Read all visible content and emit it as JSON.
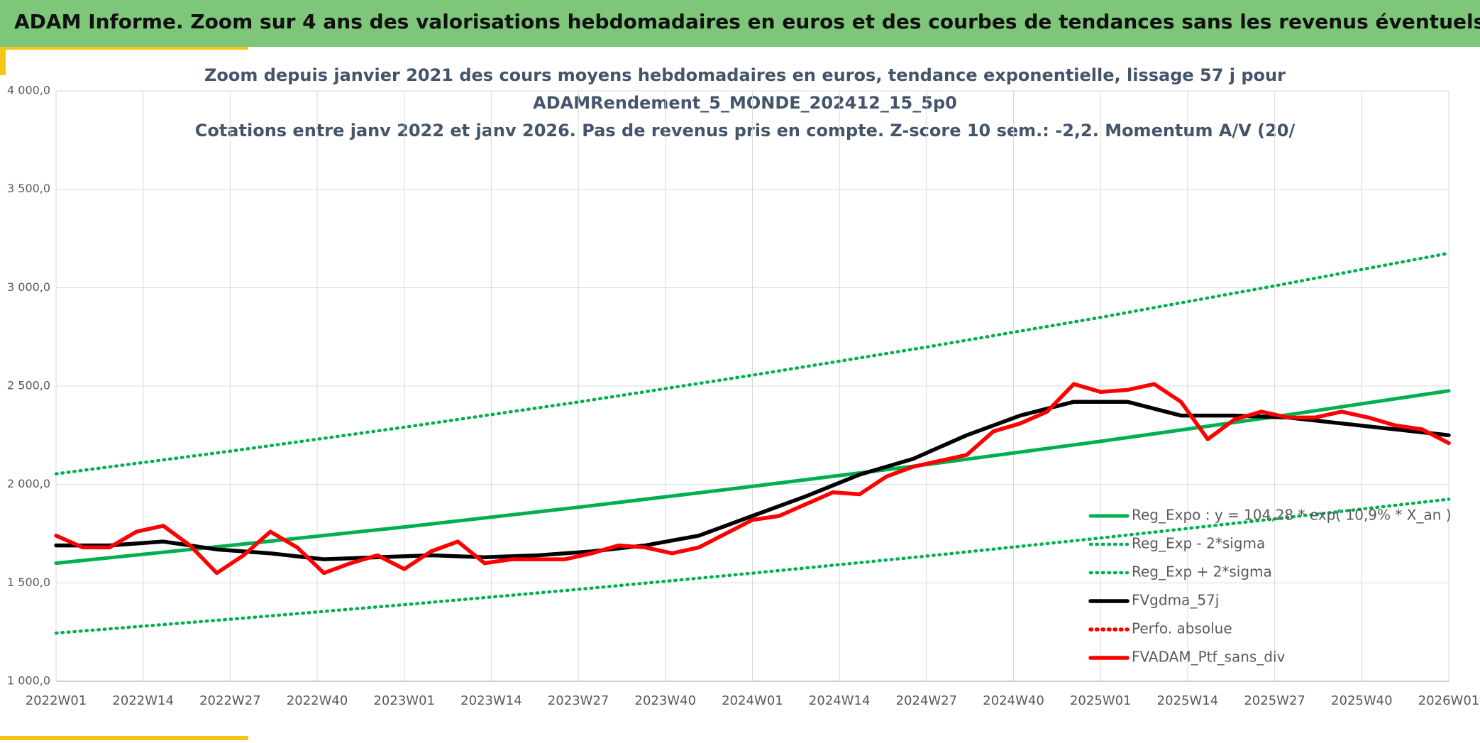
{
  "header": {
    "title": "ADAM Informe. Zoom sur 4 ans des valorisations hebdomadaires en euros et des courbes de tendances sans les revenus éventuels"
  },
  "chart_data": {
    "type": "line",
    "title": [
      "Zoom depuis janvier 2021 des cours moyens hebdomadaires en euros, tendance exponentielle, lissage 57 j pour",
      "ADAMRendement_5_MONDE_202412_15_5p0",
      "Cotations entre janv 2022 et janv 2026. Pas de revenus pris en compte. Z-score 10 sem.: -2,2. Momentum A/V (20/"
    ],
    "xlim": [
      0,
      208
    ],
    "xticks": [
      {
        "value": 0,
        "label": "2022W01"
      },
      {
        "value": 13,
        "label": "2022W14"
      },
      {
        "value": 26,
        "label": "2022W27"
      },
      {
        "value": 39,
        "label": "2022W40"
      },
      {
        "value": 52,
        "label": "2023W01"
      },
      {
        "value": 65,
        "label": "2023W14"
      },
      {
        "value": 78,
        "label": "2023W27"
      },
      {
        "value": 91,
        "label": "2023W40"
      },
      {
        "value": 104,
        "label": "2024W01"
      },
      {
        "value": 117,
        "label": "2024W14"
      },
      {
        "value": 130,
        "label": "2024W27"
      },
      {
        "value": 143,
        "label": "2024W40"
      },
      {
        "value": 156,
        "label": "2025W01"
      },
      {
        "value": 169,
        "label": "2025W14"
      },
      {
        "value": 182,
        "label": "2025W27"
      },
      {
        "value": 195,
        "label": "2025W40"
      },
      {
        "value": 208,
        "label": "2026W01"
      }
    ],
    "ylim": [
      1000,
      4000
    ],
    "yticks": [
      {
        "value": 1000,
        "label": "1 000,0"
      },
      {
        "value": 1500,
        "label": "1 500,0"
      },
      {
        "value": 2000,
        "label": "2 000,0"
      },
      {
        "value": 2500,
        "label": "2 500,0"
      },
      {
        "value": 3000,
        "label": "3 000,0"
      },
      {
        "value": 3500,
        "label": "3 500,0"
      },
      {
        "value": 4000,
        "label": "4 000,0"
      }
    ],
    "grid": true,
    "legend": "lower-right",
    "series": [
      {
        "name": "Reg_Expo : y = 104,28 * exp( 10,9% * X_an )",
        "color": "#00b050",
        "dash": "solid",
        "x": [
          0,
          26,
          52,
          78,
          104,
          130,
          156,
          182,
          208
        ],
        "values": [
          1600,
          1690,
          1784,
          1884,
          1990,
          2101,
          2219,
          2344,
          2476
        ]
      },
      {
        "name": "Reg_Exp - 2*sigma",
        "color": "#00b050",
        "dash": "dotted",
        "x": [
          0,
          26,
          52,
          78,
          104,
          130,
          156,
          182,
          208
        ],
        "values": [
          1245,
          1315,
          1389,
          1467,
          1549,
          1636,
          1728,
          1825,
          1925
        ]
      },
      {
        "name": "Reg_Exp + 2*sigma",
        "color": "#00b050",
        "dash": "dotted",
        "x": [
          0,
          26,
          52,
          78,
          104,
          130,
          156,
          182,
          208
        ],
        "values": [
          2054,
          2169,
          2291,
          2419,
          2555,
          2698,
          2849,
          3009,
          3175
        ]
      },
      {
        "name": "FVgdma_57j",
        "color": "#000000",
        "dash": "solid",
        "x": [
          0,
          8,
          16,
          24,
          32,
          40,
          48,
          56,
          64,
          72,
          80,
          88,
          96,
          104,
          112,
          120,
          128,
          136,
          144,
          152,
          160,
          168,
          176,
          184,
          192,
          200,
          208
        ],
        "values": [
          1690,
          1690,
          1710,
          1670,
          1650,
          1620,
          1630,
          1640,
          1630,
          1640,
          1660,
          1690,
          1740,
          1840,
          1940,
          2050,
          2130,
          2250,
          2350,
          2420,
          2420,
          2350,
          2350,
          2340,
          2310,
          2280,
          2250
        ]
      },
      {
        "name": "Perfo. absolue",
        "color": "#ff0000",
        "dash": "dotted",
        "x": [],
        "values": []
      },
      {
        "name": "FVADAM_Ptf_sans_div",
        "color": "#ff0000",
        "dash": "solid",
        "x": [
          0,
          4,
          8,
          12,
          16,
          20,
          24,
          28,
          32,
          36,
          40,
          44,
          48,
          52,
          56,
          60,
          64,
          68,
          72,
          76,
          80,
          84,
          88,
          92,
          96,
          100,
          104,
          108,
          112,
          116,
          120,
          124,
          128,
          132,
          136,
          140,
          144,
          148,
          152,
          156,
          160,
          164,
          168,
          172,
          176,
          180,
          184,
          188,
          192,
          196,
          200,
          204,
          208
        ],
        "values": [
          1740,
          1680,
          1680,
          1760,
          1790,
          1690,
          1550,
          1640,
          1760,
          1680,
          1550,
          1600,
          1640,
          1570,
          1660,
          1710,
          1600,
          1620,
          1620,
          1620,
          1650,
          1690,
          1680,
          1650,
          1680,
          1750,
          1820,
          1840,
          1900,
          1960,
          1950,
          2040,
          2090,
          2120,
          2150,
          2270,
          2310,
          2370,
          2510,
          2470,
          2480,
          2510,
          2420,
          2230,
          2330,
          2370,
          2340,
          2340,
          2370,
          2340,
          2300,
          2280,
          2210
        ]
      }
    ]
  }
}
